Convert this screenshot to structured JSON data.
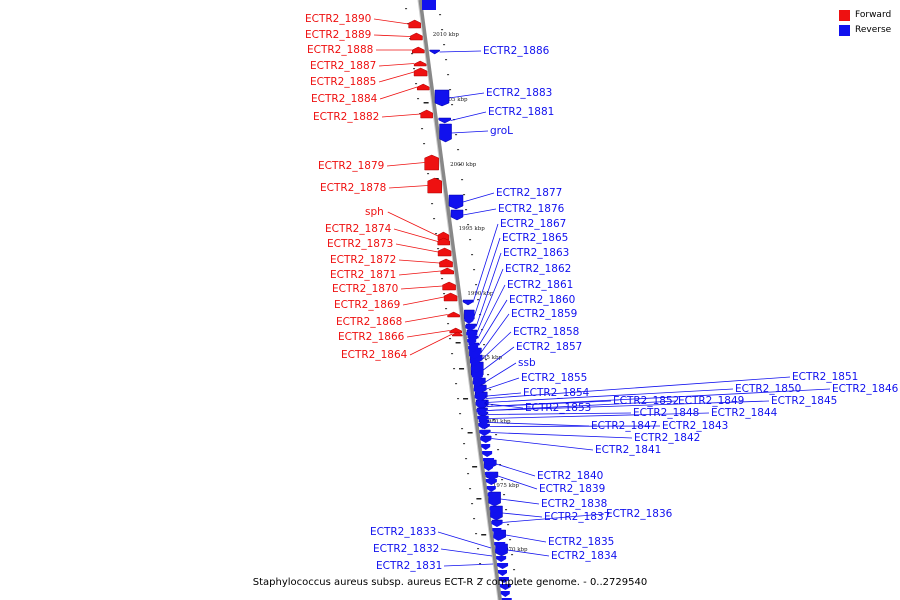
{
  "caption": "Staphylococcus aureus subsp. aureus ECT-R 2 complete genome. - 0..2729540",
  "legend": [
    {
      "label": "Forward",
      "color": "#ee1111"
    },
    {
      "label": "Reverse",
      "color": "#1111ee"
    }
  ],
  "colors": {
    "forward": "#ee1111",
    "reverse": "#1111ee",
    "axis": "#888888"
  },
  "ticks": [
    "2010 kbp",
    "2005 kbp",
    "2000 kbp",
    "1995 kbp",
    "1990 kbp",
    "1985 kbp",
    "1980 kbp",
    "1975 kbp",
    "1970 kbp"
  ],
  "genes": {
    "forward": [
      "ECTR2_1890",
      "ECTR2_1889",
      "ECTR2_1888",
      "ECTR2_1887",
      "ECTR2_1885",
      "ECTR2_1884",
      "ECTR2_1882",
      "ECTR2_1879",
      "ECTR2_1878",
      "sph",
      "ECTR2_1874",
      "ECTR2_1873",
      "ECTR2_1872",
      "ECTR2_1871",
      "ECTR2_1870",
      "ECTR2_1869",
      "ECTR2_1868",
      "ECTR2_1866",
      "ECTR2_1864"
    ],
    "reverse": [
      "ECTR2_1886",
      "ECTR2_1883",
      "ECTR2_1881",
      "groL",
      "ECTR2_1877",
      "ECTR2_1876",
      "ECTR2_1867",
      "ECTR2_1865",
      "ECTR2_1863",
      "ECTR2_1862",
      "ECTR2_1861",
      "ECTR2_1860",
      "ECTR2_1859",
      "ECTR2_1858",
      "ECTR2_1857",
      "ssb",
      "ECTR2_1855",
      "ECTR2_1854",
      "ECTR2_1853",
      "ECTR2_1852",
      "ECTR2_1849",
      "ECTR2_1848",
      "ECTR2_1844",
      "ECTR2_1847",
      "ECTR2_1843",
      "ECTR2_1842",
      "ECTR2_1841",
      "ECTR2_1851",
      "ECTR2_1850",
      "ECTR2_1846",
      "ECTR2_1845",
      "ECTR2_1840",
      "ECTR2_1839",
      "ECTR2_1838",
      "ECTR2_1837",
      "ECTR2_1836",
      "ECTR2_1835",
      "ECTR2_1834"
    ],
    "reverse_left": [
      "ECTR2_1833",
      "ECTR2_1832",
      "ECTR2_1831"
    ]
  }
}
